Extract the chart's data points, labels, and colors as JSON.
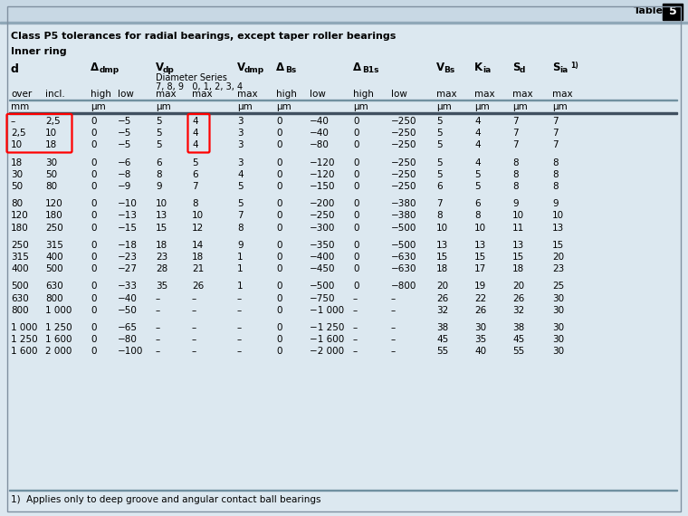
{
  "title": "Class P5 tolerances for radial bearings, except taper roller bearings",
  "subtitle": "Inner ring",
  "table_note": "1)  Applies only to deep groove and angular contact ball bearings",
  "bg_color": "#dce8f0",
  "rows": [
    [
      "-",
      "2,5",
      "0",
      "-5",
      "5",
      "4",
      "3",
      "0",
      "-40",
      "0",
      "-250",
      "5",
      "4",
      "7",
      "7"
    ],
    [
      "2,5",
      "10",
      "0",
      "-5",
      "5",
      "4",
      "3",
      "0",
      "-40",
      "0",
      "-250",
      "5",
      "4",
      "7",
      "7"
    ],
    [
      "10",
      "18",
      "0",
      "-5",
      "5",
      "4",
      "3",
      "0",
      "-80",
      "0",
      "-250",
      "5",
      "4",
      "7",
      "7"
    ],
    [
      "",
      "",
      "",
      "",
      "",
      "",
      "",
      "",
      "",
      "",
      "",
      "",
      "",
      "",
      ""
    ],
    [
      "18",
      "30",
      "0",
      "-6",
      "6",
      "5",
      "3",
      "0",
      "-120",
      "0",
      "-250",
      "5",
      "4",
      "8",
      "8"
    ],
    [
      "30",
      "50",
      "0",
      "-8",
      "8",
      "6",
      "4",
      "0",
      "-120",
      "0",
      "-250",
      "5",
      "5",
      "8",
      "8"
    ],
    [
      "50",
      "80",
      "0",
      "-9",
      "9",
      "7",
      "5",
      "0",
      "-150",
      "0",
      "-250",
      "6",
      "5",
      "8",
      "8"
    ],
    [
      "",
      "",
      "",
      "",
      "",
      "",
      "",
      "",
      "",
      "",
      "",
      "",
      "",
      "",
      ""
    ],
    [
      "80",
      "120",
      "0",
      "-10",
      "10",
      "8",
      "5",
      "0",
      "-200",
      "0",
      "-380",
      "7",
      "6",
      "9",
      "9"
    ],
    [
      "120",
      "180",
      "0",
      "-13",
      "13",
      "10",
      "7",
      "0",
      "-250",
      "0",
      "-380",
      "8",
      "8",
      "10",
      "10"
    ],
    [
      "180",
      "250",
      "0",
      "-15",
      "15",
      "12",
      "8",
      "0",
      "-300",
      "0",
      "-500",
      "10",
      "10",
      "11",
      "13"
    ],
    [
      "",
      "",
      "",
      "",
      "",
      "",
      "",
      "",
      "",
      "",
      "",
      "",
      "",
      "",
      ""
    ],
    [
      "250",
      "315",
      "0",
      "-18",
      "18",
      "14",
      "9",
      "0",
      "-350",
      "0",
      "-500",
      "13",
      "13",
      "13",
      "15"
    ],
    [
      "315",
      "400",
      "0",
      "-23",
      "23",
      "18",
      "1",
      "0",
      "-400",
      "0",
      "-630",
      "15",
      "15",
      "15",
      "20"
    ],
    [
      "400",
      "500",
      "0",
      "-27",
      "28",
      "21",
      "1",
      "0",
      "-450",
      "0",
      "-630",
      "18",
      "17",
      "18",
      "23"
    ],
    [
      "",
      "",
      "",
      "",
      "",
      "",
      "",
      "",
      "",
      "",
      "",
      "",
      "",
      "",
      ""
    ],
    [
      "500",
      "630",
      "0",
      "-33",
      "35",
      "26",
      "1",
      "0",
      "-500",
      "0",
      "-800",
      "20",
      "19",
      "20",
      "25"
    ],
    [
      "630",
      "800",
      "0",
      "-40",
      "-",
      "-",
      "-",
      "0",
      "-750",
      "-",
      "-",
      "26",
      "22",
      "26",
      "30"
    ],
    [
      "800",
      "1 000",
      "0",
      "-50",
      "-",
      "-",
      "-",
      "0",
      "-1 000",
      "-",
      "-",
      "32",
      "26",
      "32",
      "30"
    ],
    [
      "",
      "",
      "",
      "",
      "",
      "",
      "",
      "",
      "",
      "",
      "",
      "",
      "",
      "",
      ""
    ],
    [
      "1 000",
      "1 250",
      "0",
      "-65",
      "-",
      "-",
      "-",
      "0",
      "-1 250",
      "-",
      "-",
      "38",
      "30",
      "38",
      "30"
    ],
    [
      "1 250",
      "1 600",
      "0",
      "-80",
      "-",
      "-",
      "-",
      "0",
      "-1 600",
      "-",
      "-",
      "45",
      "35",
      "45",
      "30"
    ],
    [
      "1 600",
      "2 000",
      "0",
      "-100",
      "-",
      "-",
      "-",
      "0",
      "-2 000",
      "-",
      "-",
      "55",
      "40",
      "55",
      "30"
    ]
  ]
}
